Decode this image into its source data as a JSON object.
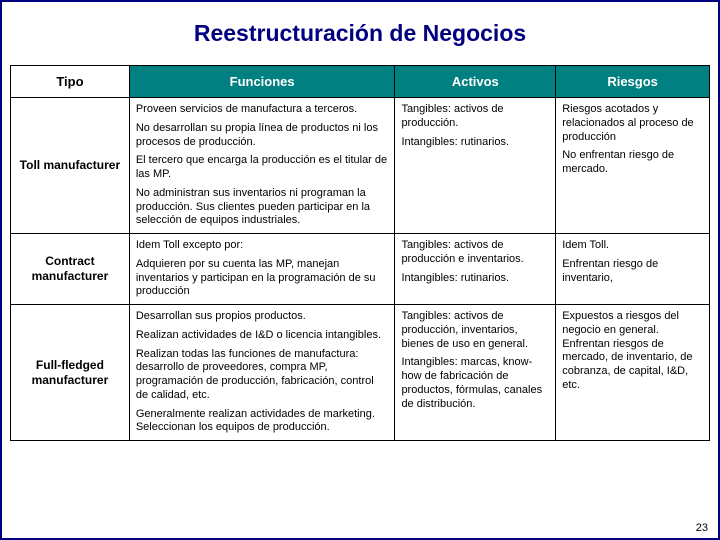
{
  "title": "Reestructuración de Negocios",
  "headers": {
    "tipo": "Tipo",
    "funciones": "Funciones",
    "activos": "Activos",
    "riesgos": "Riesgos"
  },
  "rows": {
    "toll": {
      "tipo": "Toll manufacturer",
      "func_p1": "Proveen servicios de manufactura a terceros.",
      "func_p2": "No desarrollan su propia línea de productos ni los procesos de producción.",
      "func_p3": "El tercero que encarga la producción es el titular de las MP.",
      "func_p4": "No administran sus inventarios ni programan la producción. Sus clientes pueden participar en la selección de equipos industriales.",
      "act_p1": "Tangibles: activos de producción.",
      "act_p2": "Intangibles: rutinarios.",
      "ries_p1": "Riesgos acotados y relacionados al proceso de producción",
      "ries_p2": "No enfrentan riesgo de mercado."
    },
    "contract": {
      "tipo": "Contract manufacturer",
      "func_p1": "Idem Toll excepto por:",
      "func_p2": "Adquieren por su cuenta las MP, manejan inventarios y participan en la programación de su producción",
      "act_p1": "Tangibles: activos de producción e inventarios.",
      "act_p2": "Intangibles: rutinarios.",
      "ries_p1": "Idem Toll.",
      "ries_p2": "Enfrentan riesgo de inventario,"
    },
    "full": {
      "tipo": "Full-fledged manufacturer",
      "func_p1": "Desarrollan sus propios productos.",
      "func_p2": "Realizan actividades de I&D o licencia intangibles.",
      "func_p3": "Realizan todas las funciones de manufactura: desarrollo de proveedores, compra MP, programación de producción, fabricación, control de calidad, etc.",
      "func_p4": "Generalmente realizan actividades de marketing. Seleccionan los equipos de producción.",
      "act_p1": "Tangibles: activos de producción, inventarios, bienes de uso en general.",
      "act_p2": "Intangibles: marcas, know-how de fabricación de productos, fórmulas, canales de distribución.",
      "ries_p1": "Expuestos a riesgos del negocio en general. Enfrentan riesgos de mercado, de inventario, de cobranza, de capital, I&D, etc."
    }
  },
  "page_number": "23",
  "style": {
    "slide_border_color": "#000080",
    "title_color": "#000080",
    "header_bg": "#008080",
    "header_fg": "#ffffff",
    "cell_border": "#000000",
    "title_fontsize": 23,
    "header_fontsize": 13,
    "body_fontsize": 11
  }
}
